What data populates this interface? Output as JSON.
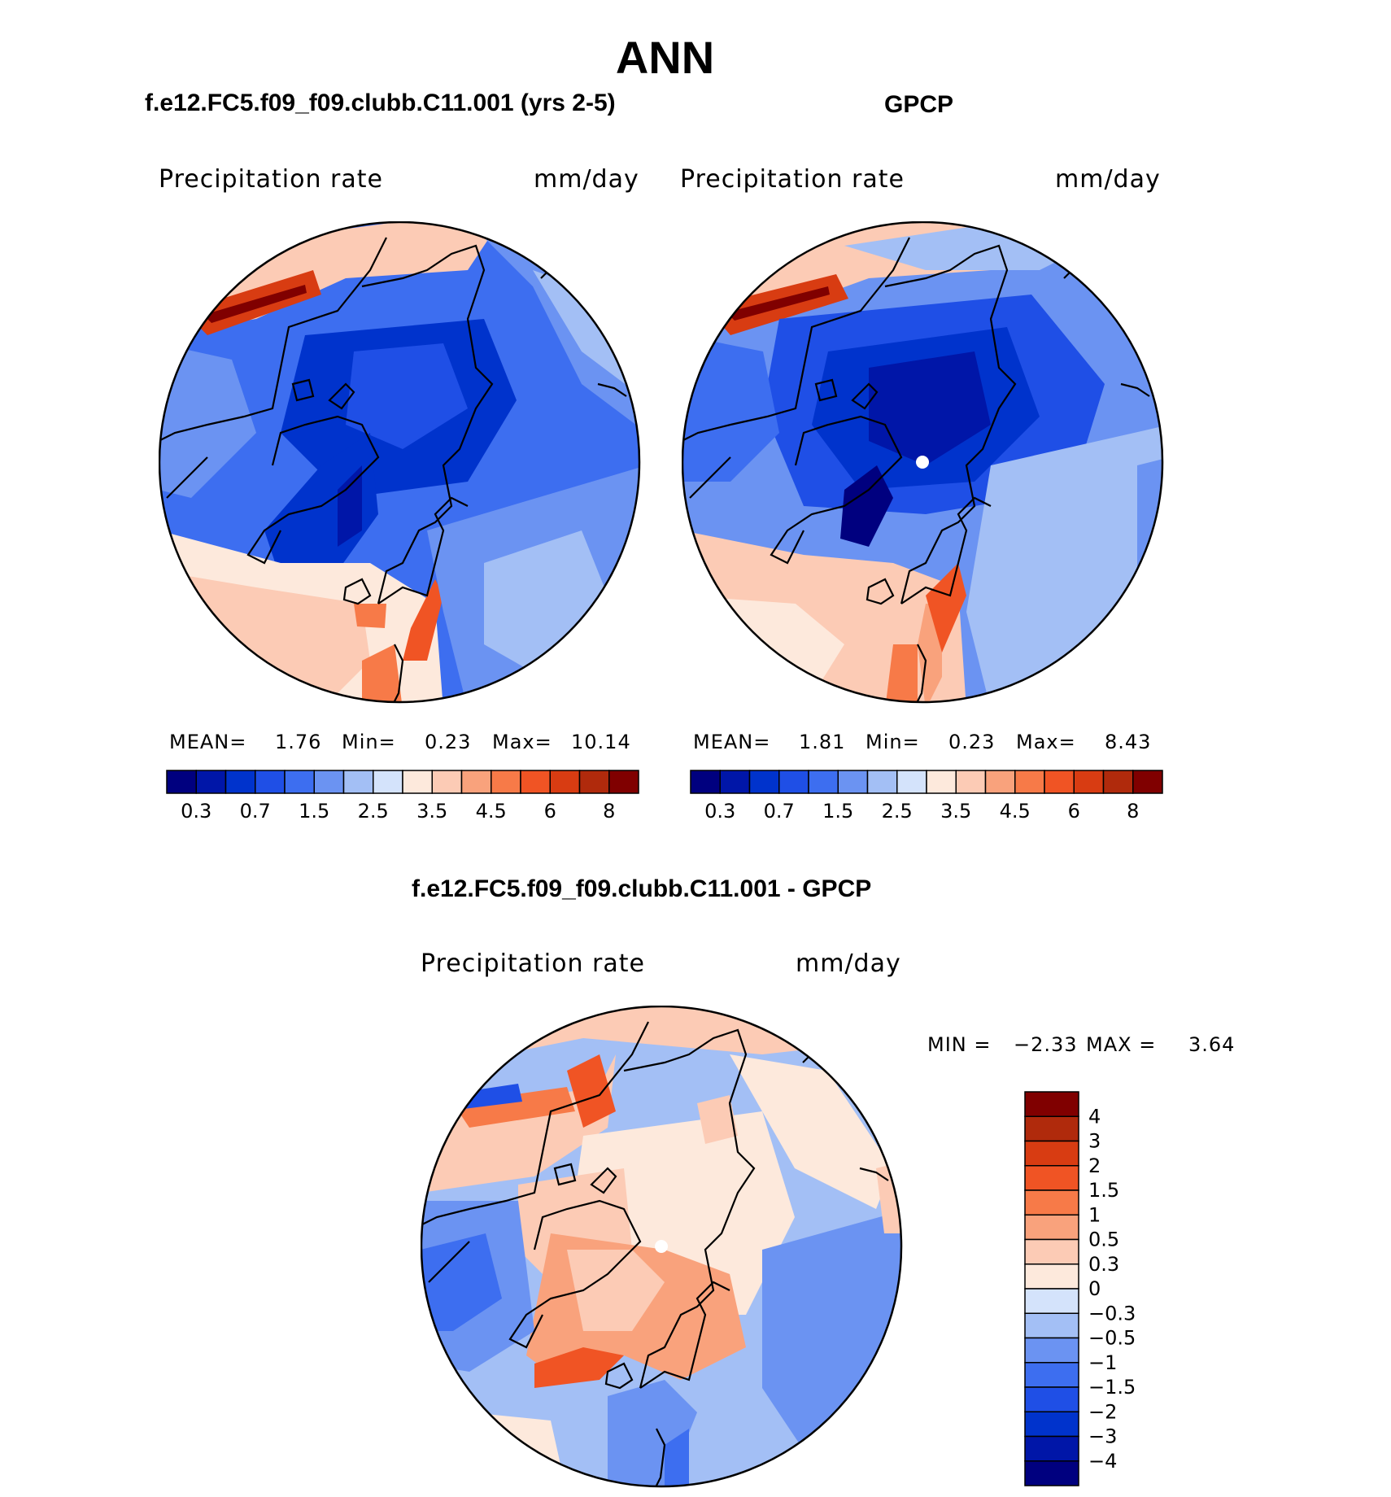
{
  "main_title": "ANN",
  "panels": [
    {
      "title": "f.e12.FC5.f09_f09.clubb.C11.001 (yrs 2-5)",
      "variable": "Precipitation rate",
      "units": "mm/day",
      "stats": {
        "mean_label": "MEAN=",
        "mean": "1.76",
        "min_label": "Min=",
        "min": "0.23",
        "max_label": "Max=",
        "max": "10.14"
      },
      "colorbar_labels": [
        "0.3",
        "0.7",
        "1.5",
        "2.5",
        "3.5",
        "4.5",
        "6",
        "8"
      ]
    },
    {
      "title": "GPCP",
      "variable": "Precipitation rate",
      "units": "mm/day",
      "stats": {
        "mean_label": "MEAN=",
        "mean": "1.81",
        "min_label": "Min=",
        "min": "0.23",
        "max_label": "Max=",
        "max": "8.43"
      },
      "colorbar_labels": [
        "0.3",
        "0.7",
        "1.5",
        "2.5",
        "3.5",
        "4.5",
        "6",
        "8"
      ]
    },
    {
      "title": "f.e12.FC5.f09_f09.clubb.C11.001 - GPCP",
      "variable": "Precipitation rate",
      "units": "mm/day",
      "stats": {
        "min_label": "MIN =",
        "min": "−2.33",
        "max_label": "MAX =",
        "max": "3.64"
      },
      "colorbar_labels": [
        "4",
        "3",
        "2",
        "1.5",
        "1",
        "0.5",
        "0.3",
        "0",
        "−0.3",
        "−0.5",
        "−1",
        "−1.5",
        "−2",
        "−3",
        "−4"
      ]
    }
  ],
  "colors": {
    "abs_scale": [
      "#00007f",
      "#0016a8",
      "#0033cc",
      "#1f4fe6",
      "#3d6ef0",
      "#6b93f2",
      "#a3bff5",
      "#d4e3fb",
      "#fde9dc",
      "#fccbb5",
      "#f9a27c",
      "#f77a48",
      "#f05424",
      "#d83c12",
      "#b02a0c",
      "#800000"
    ],
    "diff_scale": [
      "#800000",
      "#b02a0c",
      "#d83c12",
      "#f05424",
      "#f77a48",
      "#f9a27c",
      "#fccbb5",
      "#fde9dc",
      "#d4e3fb",
      "#a3bff5",
      "#6b93f2",
      "#3d6ef0",
      "#1f4fe6",
      "#0033cc",
      "#0016a8",
      "#00007f"
    ]
  },
  "chart_data": [
    {
      "type": "heatmap",
      "title": "f.e12.FC5.f09_f09.clubb.C11.001 (yrs 2-5)",
      "projection": "north polar stereographic",
      "variable": "Precipitation rate",
      "units": "mm/day",
      "mean": 1.76,
      "min": 0.23,
      "max": 10.14,
      "contour_levels": [
        0.2,
        0.3,
        0.5,
        0.7,
        1,
        1.5,
        2,
        2.5,
        3,
        3.5,
        4,
        4.5,
        5,
        6,
        7,
        8
      ],
      "colorbar_tick_labels": [
        "0.3",
        "0.7",
        "1.5",
        "2.5",
        "3.5",
        "4.5",
        "6",
        "8"
      ]
    },
    {
      "type": "heatmap",
      "title": "GPCP",
      "projection": "north polar stereographic",
      "variable": "Precipitation rate",
      "units": "mm/day",
      "mean": 1.81,
      "min": 0.23,
      "max": 8.43,
      "contour_levels": [
        0.2,
        0.3,
        0.5,
        0.7,
        1,
        1.5,
        2,
        2.5,
        3,
        3.5,
        4,
        4.5,
        5,
        6,
        7,
        8
      ],
      "colorbar_tick_labels": [
        "0.3",
        "0.7",
        "1.5",
        "2.5",
        "3.5",
        "4.5",
        "6",
        "8"
      ]
    },
    {
      "type": "heatmap",
      "title": "f.e12.FC5.f09_f09.clubb.C11.001 - GPCP",
      "projection": "north polar stereographic",
      "variable": "Precipitation rate",
      "units": "mm/day",
      "min": -2.33,
      "max": 3.64,
      "contour_levels": [
        -4,
        -3,
        -2,
        -1.5,
        -1,
        -0.5,
        -0.3,
        0,
        0.3,
        0.5,
        1,
        1.5,
        2,
        3,
        4
      ],
      "colorbar_tick_labels": [
        "4",
        "3",
        "2",
        "1.5",
        "1",
        "0.5",
        "0.3",
        "0",
        "−0.3",
        "−0.5",
        "−1",
        "−1.5",
        "−2",
        "−3",
        "−4"
      ]
    }
  ]
}
